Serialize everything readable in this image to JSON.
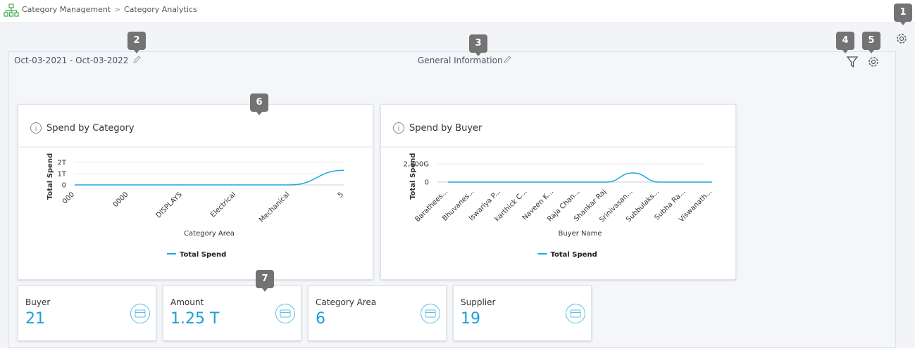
{
  "breadcrumb": [
    "Category Management",
    "Category Analytics"
  ],
  "callouts": [
    "1",
    "2",
    "3",
    "4",
    "5",
    "6",
    "7"
  ],
  "header": {
    "date_range": "Oct-03-2021 - Oct-03-2022",
    "title": "General Information"
  },
  "charts": [
    {
      "type": "line",
      "title": "Spend by Category",
      "x_label": "Category Area",
      "y_label": "Total Spend",
      "categories": [
        "000",
        "0000",
        "DISPLAYS",
        "Electrical",
        "Mechanical",
        "5"
      ],
      "series": [
        {
          "name": "Total Spend",
          "color": "#1ba8dc",
          "values": [
            0,
            0,
            0,
            0,
            0,
            1.3
          ]
        }
      ],
      "ylim": [
        0,
        2.5
      ],
      "yticks": [
        0,
        {
          "value": 1,
          "label": "1T"
        },
        {
          "value": 2,
          "label": "2T"
        }
      ],
      "grid": true
    },
    {
      "type": "line",
      "title": "Spend by Buyer",
      "x_label": "Buyer Name",
      "y_label": "Total Spend",
      "categories": [
        "Barathees...",
        "Bhuvanes...",
        "Iswariya P...",
        "karthick C...",
        "Naveen K...",
        "Raja Chan...",
        "Shankar Raj",
        "Srinivasan...",
        "Subbulaks...",
        "Subha Ra...",
        "Viswanath..."
      ],
      "series": [
        {
          "name": "Total Spend",
          "color": "#1ba8dc",
          "values": [
            0,
            0,
            0,
            0,
            0,
            0,
            0,
            1400,
            0,
            0,
            0
          ]
        }
      ],
      "ylim": [
        0,
        3500
      ],
      "yticks": [
        0,
        {
          "value": 2800,
          "label": "2,800G"
        }
      ],
      "grid": true
    }
  ],
  "kpis": [
    {
      "label": "Buyer",
      "value": "21"
    },
    {
      "label": "Amount",
      "value": "1.25 T"
    },
    {
      "label": "Category Area",
      "value": "6"
    },
    {
      "label": "Supplier",
      "value": "19"
    }
  ]
}
